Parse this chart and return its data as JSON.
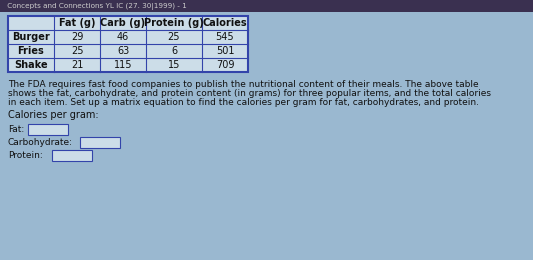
{
  "header_row": [
    "",
    "Fat (g)",
    "Carb (g)",
    "Protein (g)",
    "Calories"
  ],
  "table_rows": [
    [
      "Burger",
      "29",
      "46",
      "25",
      "545"
    ],
    [
      "Fries",
      "25",
      "63",
      "6",
      "501"
    ],
    [
      "Shake",
      "21",
      "115",
      "15",
      "709"
    ]
  ],
  "title_text": " Concepts and Connections YL IC (27. 30|1999) - 1",
  "body_text_line1": "The FDA requires fast food companies to publish the nutritional content of their meals. The above table",
  "body_text_line2": "shows the fat, carbohydrate, and protein content (in grams) for three popular items, and the total calories",
  "body_text_line3": "in each item. Set up a matrix equation to find the calories per gram for fat, carbohydrates, and protein.",
  "calories_label": "Calories per gram:",
  "fat_label": "Fat:",
  "carb_label": "Carbohydrate:",
  "protein_label": "Protein:",
  "bg_color": "#9ab8d0",
  "table_fill": "#ccdde8",
  "header_fill": "#ccdde8",
  "border_color": "#3344aa",
  "text_color": "#111111",
  "title_color": "#cccccc",
  "title_bg": "#3a3050",
  "body_fontsize": 6.5,
  "table_fontsize": 7.0,
  "box_color": "#ccdde8",
  "box_border": "#3344aa"
}
